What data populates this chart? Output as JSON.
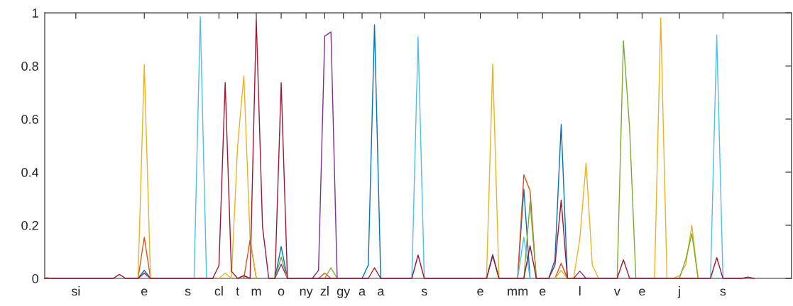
{
  "chart_data": {
    "type": "line",
    "categories": [
      null,
      null,
      null,
      null,
      null,
      "si",
      null,
      null,
      null,
      null,
      null,
      null,
      null,
      null,
      null,
      null,
      "e",
      null,
      null,
      null,
      null,
      null,
      null,
      "s",
      null,
      null,
      null,
      null,
      "cl",
      null,
      null,
      "t",
      null,
      null,
      "m",
      null,
      null,
      null,
      "o",
      null,
      null,
      null,
      "ny",
      null,
      null,
      "zl",
      null,
      null,
      "gy",
      null,
      null,
      "a",
      null,
      null,
      "a",
      null,
      null,
      null,
      null,
      null,
      null,
      "s",
      null,
      null,
      null,
      null,
      null,
      null,
      null,
      null,
      "e",
      null,
      null,
      null,
      null,
      null,
      "mm",
      null,
      null,
      null,
      "e",
      null,
      null,
      null,
      null,
      null,
      "l",
      null,
      null,
      null,
      null,
      null,
      "v",
      null,
      null,
      null,
      "e",
      null,
      null,
      null,
      null,
      null,
      "j",
      null,
      null,
      null,
      null,
      null,
      null,
      "s",
      null,
      null,
      null,
      null,
      null,
      null,
      null,
      null,
      null,
      null,
      null
    ],
    "ylim": [
      0,
      1
    ],
    "yticks": [
      0,
      0.2,
      0.4,
      0.6,
      0.8,
      1
    ],
    "grid": false,
    "series": [
      {
        "color": "#0072bd",
        "values": [
          null,
          null,
          null,
          null,
          null,
          null,
          null,
          null,
          null,
          null,
          null,
          null,
          null,
          null,
          null,
          0,
          0.03,
          0,
          null,
          null,
          null,
          null,
          null,
          null,
          null,
          null,
          null,
          null,
          null,
          null,
          null,
          null,
          null,
          null,
          null,
          null,
          null,
          0,
          0.12,
          0,
          null,
          null,
          null,
          null,
          null,
          null,
          null,
          null,
          null,
          null,
          null,
          0,
          0.05,
          0.955,
          0,
          null,
          null,
          null,
          null,
          null,
          null,
          null,
          null,
          null,
          null,
          null,
          null,
          null,
          null,
          null,
          null,
          0,
          0.09,
          0,
          null,
          null,
          0,
          0.336,
          0,
          null,
          null,
          0,
          0.07,
          0.58,
          0,
          null,
          null,
          null,
          null,
          null,
          null,
          null,
          null,
          null,
          null,
          null,
          null,
          null,
          null,
          null,
          null,
          null,
          null,
          null,
          null,
          null,
          null,
          null,
          null,
          null,
          null,
          null,
          null,
          null,
          null,
          null,
          null,
          null,
          null,
          null,
          null
        ]
      },
      {
        "color": "#d95319",
        "values": [
          null,
          null,
          null,
          null,
          null,
          null,
          null,
          null,
          null,
          null,
          null,
          null,
          null,
          null,
          null,
          0,
          0.155,
          0,
          null,
          null,
          null,
          null,
          null,
          null,
          null,
          null,
          null,
          null,
          null,
          null,
          null,
          null,
          0,
          0.145,
          0,
          null,
          null,
          null,
          null,
          null,
          null,
          null,
          null,
          null,
          0,
          0.02,
          0,
          null,
          null,
          null,
          null,
          null,
          null,
          null,
          null,
          null,
          null,
          null,
          null,
          null,
          null,
          null,
          null,
          null,
          null,
          null,
          null,
          null,
          null,
          null,
          null,
          null,
          null,
          null,
          null,
          null,
          0,
          0.39,
          0.33,
          0,
          null,
          null,
          0,
          0.057,
          0,
          null,
          null,
          null,
          null,
          null,
          null,
          null,
          null,
          null,
          null,
          null,
          null,
          null,
          null,
          null,
          null,
          null,
          null,
          null,
          null,
          null,
          null,
          null,
          null,
          null,
          null,
          null,
          null,
          null,
          null,
          null,
          null,
          null,
          null,
          null,
          null
        ]
      },
      {
        "color": "#edb120",
        "values": [
          0.005,
          0,
          null,
          null,
          null,
          null,
          null,
          null,
          null,
          null,
          null,
          null,
          null,
          null,
          null,
          0,
          0.806,
          0,
          null,
          null,
          null,
          null,
          null,
          null,
          null,
          null,
          null,
          null,
          0,
          0.02,
          0,
          0.5,
          0.763,
          0.15,
          0,
          null,
          null,
          null,
          null,
          null,
          null,
          null,
          null,
          null,
          null,
          null,
          null,
          null,
          null,
          null,
          null,
          null,
          null,
          null,
          null,
          null,
          null,
          null,
          null,
          null,
          null,
          null,
          null,
          null,
          null,
          null,
          null,
          null,
          null,
          null,
          null,
          0,
          0.808,
          0,
          null,
          null,
          null,
          null,
          null,
          null,
          null,
          null,
          0,
          0.03,
          0,
          0,
          0.15,
          0.435,
          0.05,
          0,
          null,
          null,
          null,
          null,
          null,
          null,
          null,
          null,
          0,
          0.981,
          0,
          0,
          0.01,
          0.05,
          0.2,
          0,
          null,
          null,
          null,
          null,
          null,
          null,
          null,
          null,
          null,
          null,
          null,
          null,
          null,
          null,
          null
        ]
      },
      {
        "color": "#7e2f8e",
        "values": [
          null,
          null,
          null,
          null,
          null,
          null,
          null,
          null,
          null,
          null,
          null,
          null,
          null,
          null,
          null,
          null,
          null,
          null,
          null,
          null,
          null,
          null,
          null,
          null,
          null,
          null,
          null,
          null,
          null,
          null,
          null,
          null,
          null,
          null,
          null,
          null,
          null,
          0,
          0.053,
          0,
          null,
          null,
          null,
          0,
          0.03,
          0.912,
          0.928,
          0,
          null,
          null,
          null,
          null,
          null,
          null,
          null,
          null,
          null,
          null,
          null,
          null,
          null,
          null,
          null,
          null,
          null,
          null,
          null,
          null,
          null,
          null,
          null,
          null,
          null,
          null,
          null,
          null,
          null,
          null,
          null,
          null,
          null,
          null,
          null,
          null,
          null,
          0,
          0.027,
          0,
          null,
          null,
          null,
          null,
          null,
          null,
          null,
          null,
          null,
          null,
          null,
          null,
          null,
          null,
          null,
          null,
          null,
          null,
          null,
          null,
          null,
          null,
          null,
          null,
          null,
          null,
          null,
          null,
          null,
          null,
          null,
          null,
          null
        ]
      },
      {
        "color": "#77ac30",
        "values": [
          null,
          null,
          null,
          null,
          null,
          null,
          null,
          null,
          null,
          null,
          null,
          null,
          null,
          null,
          null,
          null,
          null,
          null,
          null,
          null,
          null,
          null,
          null,
          null,
          null,
          null,
          null,
          null,
          null,
          null,
          null,
          null,
          null,
          null,
          null,
          null,
          null,
          0,
          0.08,
          0,
          null,
          null,
          null,
          null,
          null,
          0,
          0.04,
          0,
          null,
          null,
          null,
          null,
          null,
          null,
          null,
          null,
          null,
          null,
          null,
          null,
          null,
          null,
          null,
          null,
          null,
          null,
          null,
          null,
          null,
          null,
          null,
          null,
          null,
          null,
          null,
          null,
          null,
          0,
          0.288,
          0,
          null,
          null,
          null,
          null,
          null,
          null,
          null,
          null,
          null,
          null,
          null,
          null,
          0,
          0.895,
          0.563,
          0,
          null,
          null,
          null,
          null,
          null,
          null,
          0,
          0.07,
          0.168,
          0,
          null,
          null,
          null,
          null,
          null,
          null,
          null,
          null,
          null,
          null,
          null,
          null,
          null,
          null,
          null
        ]
      },
      {
        "color": "#4dbeee",
        "values": [
          null,
          null,
          null,
          null,
          null,
          null,
          null,
          null,
          null,
          null,
          null,
          null,
          null,
          null,
          null,
          null,
          null,
          null,
          null,
          null,
          null,
          null,
          null,
          null,
          0,
          0.986,
          0,
          null,
          null,
          null,
          null,
          null,
          null,
          null,
          null,
          null,
          null,
          null,
          null,
          null,
          null,
          null,
          null,
          null,
          null,
          null,
          null,
          null,
          null,
          null,
          null,
          null,
          null,
          null,
          null,
          null,
          null,
          null,
          null,
          0,
          0.91,
          0,
          null,
          null,
          null,
          null,
          null,
          null,
          null,
          null,
          null,
          null,
          null,
          null,
          null,
          null,
          0,
          0.155,
          0,
          null,
          null,
          null,
          null,
          null,
          null,
          null,
          null,
          null,
          null,
          null,
          null,
          null,
          null,
          null,
          null,
          null,
          null,
          null,
          null,
          null,
          null,
          null,
          null,
          null,
          null,
          null,
          null,
          0,
          0.917,
          0,
          null,
          null,
          null,
          null,
          null,
          null,
          null,
          null,
          null,
          null,
          null
        ]
      },
      {
        "color": "#a2142f",
        "values": [
          0,
          0,
          0,
          0,
          0,
          0,
          0,
          0,
          0,
          0,
          0,
          0,
          0.015,
          0,
          0,
          0,
          0.02,
          0,
          0,
          0,
          0,
          0,
          0,
          0,
          0,
          0,
          0,
          0,
          0.048,
          0.737,
          0.027,
          0,
          0.01,
          0,
          0.977,
          0.195,
          0,
          0,
          0.737,
          0,
          0,
          0,
          0,
          0,
          0,
          0,
          0,
          0,
          0,
          0,
          0,
          0,
          0,
          0.04,
          0,
          0,
          0,
          0,
          0,
          0,
          0.088,
          0,
          0,
          0,
          0,
          0,
          0,
          0,
          0,
          0,
          0,
          0,
          0.085,
          0,
          0,
          0,
          0,
          0,
          0.123,
          0,
          0,
          0,
          0.05,
          0.295,
          0,
          0,
          0,
          0,
          0,
          0,
          0,
          0,
          0,
          0.07,
          0,
          0,
          0,
          0,
          0,
          0,
          0,
          0,
          0,
          0,
          0,
          0,
          0,
          0,
          0.078,
          0,
          0,
          0,
          0,
          0.005,
          0,
          null,
          null,
          null,
          null,
          null,
          null
        ]
      }
    ]
  }
}
